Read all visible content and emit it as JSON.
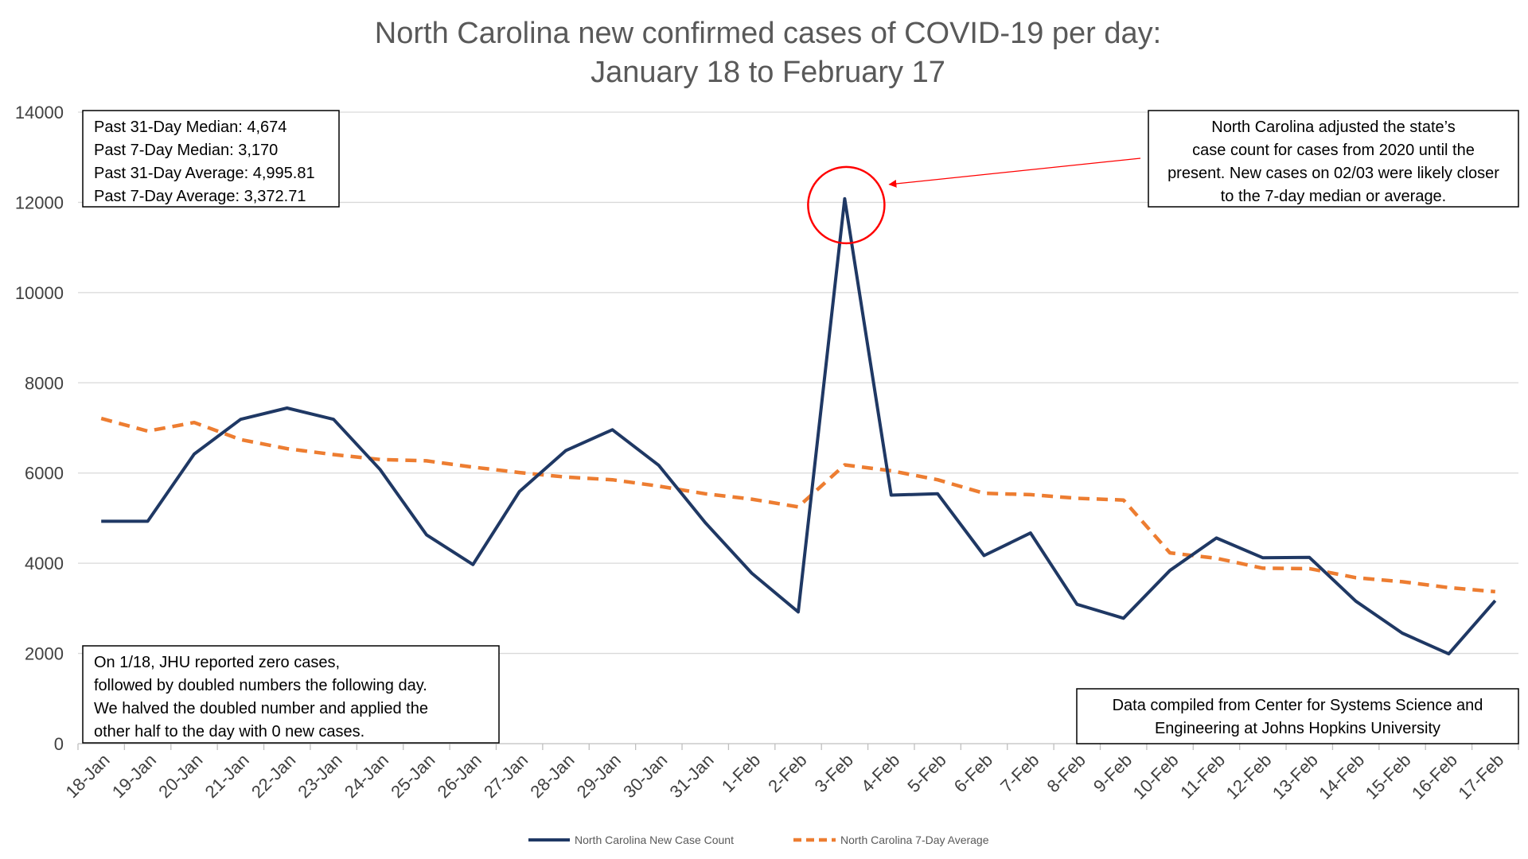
{
  "chart_data": {
    "type": "line",
    "title_line1": "North Carolina new confirmed cases of COVID-19 per day:",
    "title_line2": "January 18 to February 17",
    "categories": [
      "18-Jan",
      "19-Jan",
      "20-Jan",
      "21-Jan",
      "22-Jan",
      "23-Jan",
      "24-Jan",
      "25-Jan",
      "26-Jan",
      "27-Jan",
      "28-Jan",
      "29-Jan",
      "30-Jan",
      "31-Jan",
      "1-Feb",
      "2-Feb",
      "3-Feb",
      "4-Feb",
      "5-Feb",
      "6-Feb",
      "7-Feb",
      "8-Feb",
      "9-Feb",
      "10-Feb",
      "11-Feb",
      "12-Feb",
      "13-Feb",
      "14-Feb",
      "15-Feb",
      "16-Feb",
      "17-Feb"
    ],
    "ylim": [
      0,
      14000
    ],
    "yticks": [
      0,
      2000,
      4000,
      6000,
      8000,
      10000,
      12000,
      14000
    ],
    "grid": true,
    "legend_position": "bottom",
    "series": [
      {
        "name": "North Carolina New Case Count",
        "color": "#1F3864",
        "style": "solid",
        "values": [
          4930,
          4930,
          6420,
          7190,
          7440,
          7190,
          6080,
          4630,
          3970,
          5590,
          6500,
          6960,
          6170,
          4900,
          3780,
          2920,
          12080,
          5510,
          5540,
          4170,
          4670,
          3090,
          2780,
          3840,
          4560,
          4120,
          4130,
          3160,
          2450,
          1990,
          3170
        ]
      },
      {
        "name": "North Carolina 7-Day Average",
        "color": "#ED7D31",
        "style": "dashed",
        "values": [
          7210,
          6930,
          7120,
          6740,
          6540,
          6410,
          6300,
          6270,
          6130,
          6010,
          5910,
          5850,
          5710,
          5540,
          5420,
          5250,
          6180,
          6050,
          5850,
          5550,
          5520,
          5440,
          5400,
          4230,
          4110,
          3890,
          3880,
          3680,
          3590,
          3460,
          3370
        ]
      }
    ],
    "annotations": {
      "stats": [
        "Past 31-Day Median: 4,674",
        "Past 7-Day Median: 3,170",
        "Past 31-Day Average: 4,995.81",
        "Past 7-Day Average: 3,372.71"
      ],
      "adjustment_note": [
        "North Carolina adjusted the state’s",
        "case count for cases from 2020 until the",
        "present. New cases on 02/03 were likely closer",
        "to the 7-day median or average."
      ],
      "jhu_note": [
        "On 1/18, JHU reported zero cases,",
        "followed by doubled numbers the following day.",
        "We halved the doubled number and applied the",
        "other half to the day with 0 new cases."
      ],
      "source_note": [
        "Data compiled from Center for Systems Science and",
        "Engineering at Johns Hopkins University"
      ],
      "highlight_category": "3-Feb",
      "highlight_color": "#FF0000"
    }
  }
}
